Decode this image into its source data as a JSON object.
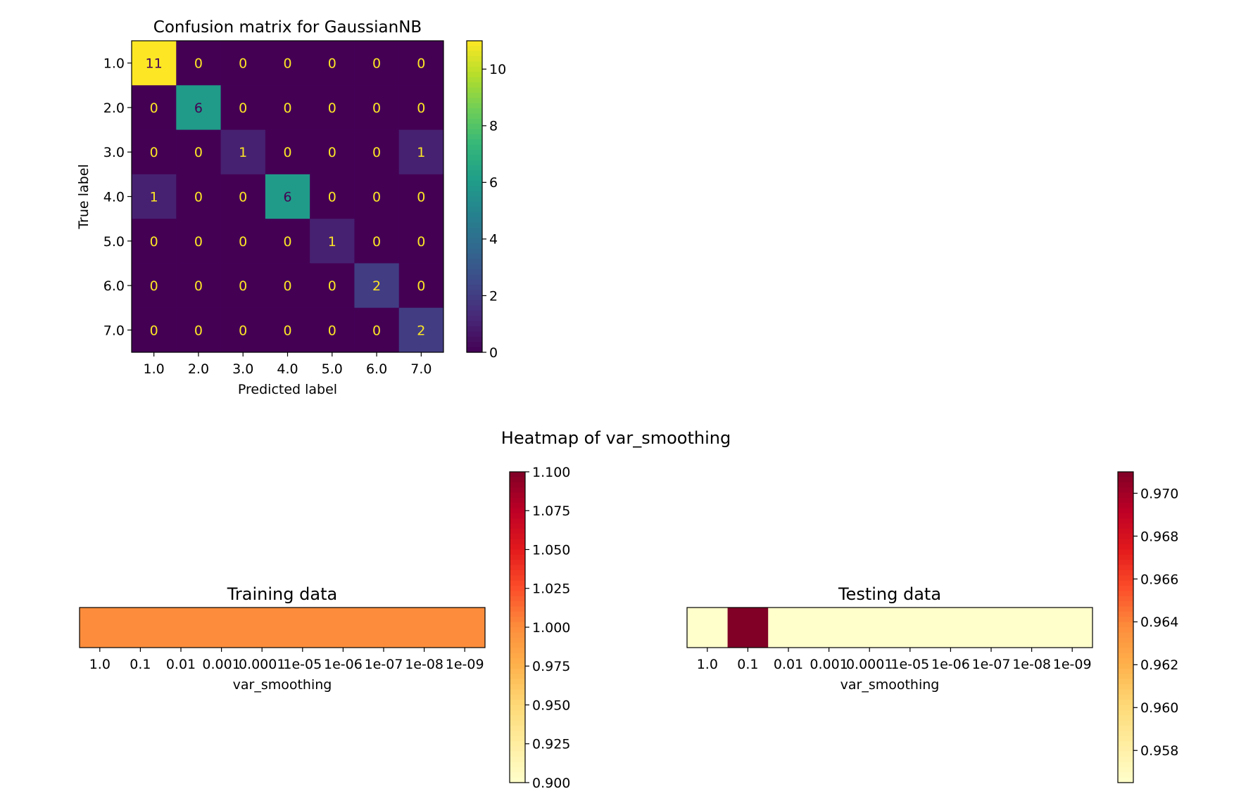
{
  "chart_data": [
    {
      "type": "heatmap",
      "title": "Confusion matrix for GaussianNB",
      "xlabel": "Predicted label",
      "ylabel": "True label",
      "x_categories": [
        "1.0",
        "2.0",
        "3.0",
        "4.0",
        "5.0",
        "6.0",
        "7.0"
      ],
      "y_categories": [
        "1.0",
        "2.0",
        "3.0",
        "4.0",
        "5.0",
        "6.0",
        "7.0"
      ],
      "values": [
        [
          11,
          0,
          0,
          0,
          0,
          0,
          0
        ],
        [
          0,
          6,
          0,
          0,
          0,
          0,
          0
        ],
        [
          0,
          0,
          1,
          0,
          0,
          0,
          1
        ],
        [
          1,
          0,
          0,
          6,
          0,
          0,
          0
        ],
        [
          0,
          0,
          0,
          0,
          1,
          0,
          0
        ],
        [
          0,
          0,
          0,
          0,
          0,
          2,
          0
        ],
        [
          0,
          0,
          0,
          0,
          0,
          0,
          2
        ]
      ],
      "colormap": "viridis",
      "colorbar": {
        "range": [
          0,
          11
        ],
        "ticks": [
          "0",
          "2",
          "4",
          "6",
          "8",
          "10"
        ]
      }
    },
    {
      "type": "heatmap",
      "title": "Training data",
      "xlabel": "var_smoothing",
      "x_categories": [
        "1.0",
        "0.1",
        "0.01",
        "0.001",
        "0.0001",
        "1e-05",
        "1e-06",
        "1e-07",
        "1e-08",
        "1e-09"
      ],
      "values": [
        [
          1.0,
          1.0,
          1.0,
          1.0,
          1.0,
          1.0,
          1.0,
          1.0,
          1.0,
          1.0
        ]
      ],
      "colormap": "YlOrRd",
      "colorbar": {
        "range": [
          0.9,
          1.1
        ],
        "ticks": [
          "1.100",
          "1.075",
          "1.050",
          "1.025",
          "1.000",
          "0.975",
          "0.950",
          "0.925",
          "0.900"
        ]
      }
    },
    {
      "type": "heatmap",
      "title": "Testing data",
      "xlabel": "var_smoothing",
      "x_categories": [
        "1.0",
        "0.1",
        "0.01",
        "0.001",
        "0.0001",
        "1e-05",
        "1e-06",
        "1e-07",
        "1e-08",
        "1e-09"
      ],
      "values": [
        [
          0.9565,
          0.971,
          0.9565,
          0.9565,
          0.9565,
          0.9565,
          0.9565,
          0.9565,
          0.9565,
          0.9565
        ]
      ],
      "colormap": "YlOrRd",
      "colorbar": {
        "range": [
          0.9565,
          0.971
        ],
        "ticks": [
          "0.970",
          "0.968",
          "0.966",
          "0.964",
          "0.962",
          "0.960",
          "0.958"
        ]
      }
    }
  ],
  "figure_title": "Heatmap of var_smoothing"
}
